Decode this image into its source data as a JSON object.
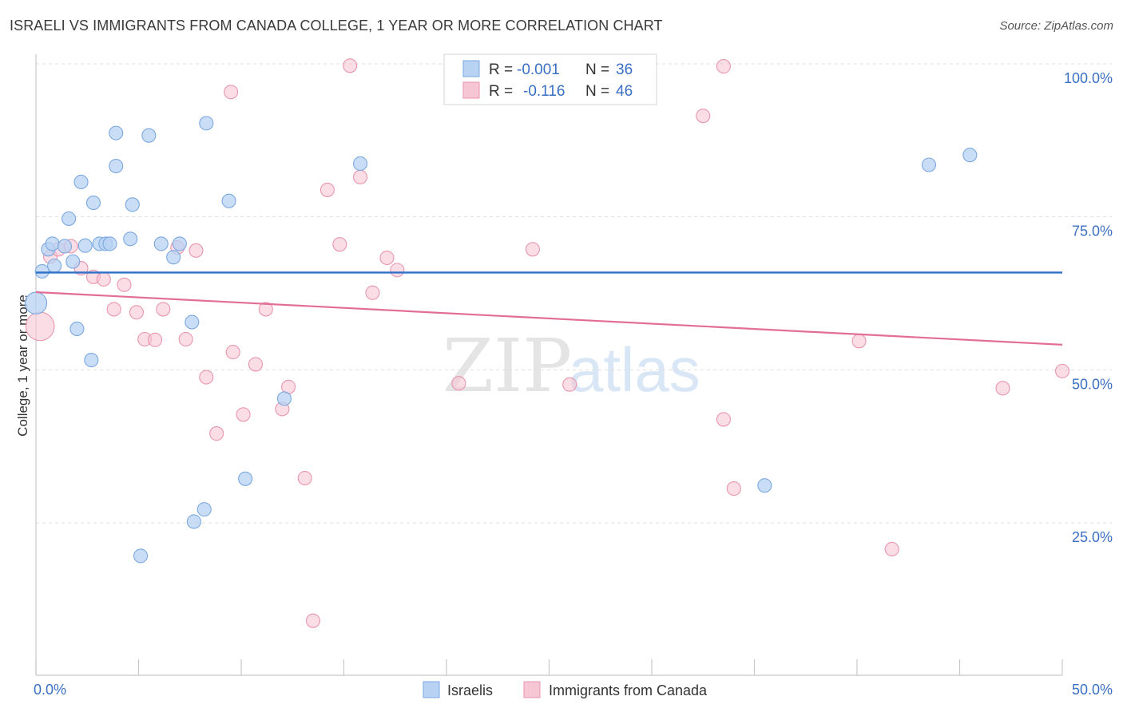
{
  "title": "ISRAELI VS IMMIGRANTS FROM CANADA COLLEGE, 1 YEAR OR MORE CORRELATION CHART",
  "source": "Source: ZipAtlas.com",
  "watermark": {
    "zip": "ZIP",
    "atlas": "atlas"
  },
  "colors": {
    "blue_fill": "#b8d2f3",
    "blue_stroke": "#7aa8e0",
    "blue_line": "#2e6fc8",
    "pink_fill": "#f7c6d4",
    "pink_stroke": "#e996b0",
    "pink_line": "#e26e97",
    "axis_text": "#3b6fc4"
  },
  "legend": {
    "rows": [
      {
        "r_label": "R =",
        "r_value": "-0.001",
        "n_label": "N =",
        "n_value": "36"
      },
      {
        "r_label": "R =",
        "r_value": "-0.116",
        "n_label": "N =",
        "n_value": "46"
      }
    ]
  },
  "bottom_legend": {
    "items": [
      "Israelis",
      "Immigrants from Canada"
    ]
  },
  "chart_data": {
    "type": "scatter",
    "title": "ISRAELI VS IMMIGRANTS FROM CANADA COLLEGE, 1 YEAR OR MORE CORRELATION CHART",
    "xlabel": "",
    "ylabel": "College, 1 year or more",
    "xlim": [
      0,
      50
    ],
    "ylim": [
      0,
      105
    ],
    "x_tick_labels": [
      "0.0%",
      "50.0%"
    ],
    "y_ticks": [
      25,
      50,
      75,
      100
    ],
    "y_tick_labels": [
      "25.0%",
      "50.0%",
      "75.0%",
      "100.0%"
    ],
    "grid": true,
    "legend_position": "top-center",
    "series": [
      {
        "name": "Israelis",
        "r": -0.001,
        "n": 36,
        "trend": {
          "x": [
            0,
            50
          ],
          "y": [
            65.9,
            65.9
          ]
        },
        "points": [
          {
            "x": 0.3,
            "y": 66.1,
            "s": 1
          },
          {
            "x": 0.0,
            "y": 60.9,
            "s": 1.6
          },
          {
            "x": 0.6,
            "y": 69.7,
            "s": 1
          },
          {
            "x": 0.9,
            "y": 67.0,
            "s": 1
          },
          {
            "x": 0.8,
            "y": 70.6,
            "s": 1
          },
          {
            "x": 1.4,
            "y": 70.2,
            "s": 1
          },
          {
            "x": 1.6,
            "y": 74.7,
            "s": 1
          },
          {
            "x": 1.8,
            "y": 67.7,
            "s": 1
          },
          {
            "x": 2.2,
            "y": 80.7,
            "s": 1
          },
          {
            "x": 2.0,
            "y": 56.7,
            "s": 1
          },
          {
            "x": 2.4,
            "y": 70.3,
            "s": 1
          },
          {
            "x": 2.7,
            "y": 51.6,
            "s": 1
          },
          {
            "x": 2.8,
            "y": 77.3,
            "s": 1
          },
          {
            "x": 3.1,
            "y": 70.6,
            "s": 1
          },
          {
            "x": 3.4,
            "y": 70.6,
            "s": 1
          },
          {
            "x": 3.6,
            "y": 70.6,
            "s": 1
          },
          {
            "x": 3.9,
            "y": 88.7,
            "s": 1
          },
          {
            "x": 3.9,
            "y": 83.3,
            "s": 1
          },
          {
            "x": 4.6,
            "y": 71.4,
            "s": 1
          },
          {
            "x": 4.7,
            "y": 77.0,
            "s": 1
          },
          {
            "x": 5.1,
            "y": 19.6,
            "s": 1
          },
          {
            "x": 5.5,
            "y": 88.3,
            "s": 1
          },
          {
            "x": 6.1,
            "y": 70.6,
            "s": 1
          },
          {
            "x": 6.7,
            "y": 68.4,
            "s": 1
          },
          {
            "x": 7.0,
            "y": 70.6,
            "s": 1
          },
          {
            "x": 7.6,
            "y": 57.8,
            "s": 1
          },
          {
            "x": 7.7,
            "y": 25.2,
            "s": 1
          },
          {
            "x": 8.2,
            "y": 27.2,
            "s": 1
          },
          {
            "x": 8.3,
            "y": 90.3,
            "s": 1
          },
          {
            "x": 9.4,
            "y": 77.6,
            "s": 1
          },
          {
            "x": 10.2,
            "y": 32.2,
            "s": 1
          },
          {
            "x": 12.1,
            "y": 45.3,
            "s": 1
          },
          {
            "x": 15.8,
            "y": 83.7,
            "s": 1
          },
          {
            "x": 35.5,
            "y": 31.1,
            "s": 1
          },
          {
            "x": 43.5,
            "y": 83.5,
            "s": 1
          },
          {
            "x": 45.5,
            "y": 85.1,
            "s": 1
          }
        ]
      },
      {
        "name": "Immigrants from Canada",
        "r": -0.116,
        "n": 46,
        "trend": {
          "x": [
            0,
            50
          ],
          "y": [
            62.7,
            54.1
          ]
        },
        "points": [
          {
            "x": 0.2,
            "y": 57.1,
            "s": 2.1
          },
          {
            "x": 0.7,
            "y": 68.5,
            "s": 1
          },
          {
            "x": 1.1,
            "y": 69.7,
            "s": 1
          },
          {
            "x": 1.7,
            "y": 70.2,
            "s": 1
          },
          {
            "x": 2.2,
            "y": 66.6,
            "s": 1
          },
          {
            "x": 2.8,
            "y": 65.2,
            "s": 1
          },
          {
            "x": 3.3,
            "y": 64.8,
            "s": 1
          },
          {
            "x": 3.8,
            "y": 59.9,
            "s": 1
          },
          {
            "x": 4.3,
            "y": 63.9,
            "s": 1
          },
          {
            "x": 4.9,
            "y": 59.4,
            "s": 1
          },
          {
            "x": 5.3,
            "y": 55.0,
            "s": 1
          },
          {
            "x": 5.8,
            "y": 54.9,
            "s": 1
          },
          {
            "x": 6.2,
            "y": 59.9,
            "s": 1
          },
          {
            "x": 6.9,
            "y": 70.0,
            "s": 1
          },
          {
            "x": 7.3,
            "y": 55.0,
            "s": 1
          },
          {
            "x": 7.8,
            "y": 69.5,
            "s": 1
          },
          {
            "x": 8.3,
            "y": 48.8,
            "s": 1
          },
          {
            "x": 8.8,
            "y": 39.6,
            "s": 1
          },
          {
            "x": 9.5,
            "y": 95.4,
            "s": 1
          },
          {
            "x": 9.6,
            "y": 52.9,
            "s": 1
          },
          {
            "x": 10.1,
            "y": 42.7,
            "s": 1
          },
          {
            "x": 10.7,
            "y": 50.9,
            "s": 1
          },
          {
            "x": 11.2,
            "y": 59.9,
            "s": 1
          },
          {
            "x": 12.0,
            "y": 43.6,
            "s": 1
          },
          {
            "x": 12.3,
            "y": 47.2,
            "s": 1
          },
          {
            "x": 13.1,
            "y": 32.3,
            "s": 1
          },
          {
            "x": 13.5,
            "y": 9.0,
            "s": 1
          },
          {
            "x": 14.2,
            "y": 79.4,
            "s": 1
          },
          {
            "x": 14.8,
            "y": 70.5,
            "s": 1
          },
          {
            "x": 15.3,
            "y": 99.7,
            "s": 1
          },
          {
            "x": 15.8,
            "y": 81.5,
            "s": 1
          },
          {
            "x": 16.4,
            "y": 62.6,
            "s": 1
          },
          {
            "x": 17.1,
            "y": 68.3,
            "s": 1
          },
          {
            "x": 17.6,
            "y": 66.3,
            "s": 1
          },
          {
            "x": 20.6,
            "y": 47.8,
            "s": 1
          },
          {
            "x": 24.2,
            "y": 69.7,
            "s": 1
          },
          {
            "x": 26.0,
            "y": 47.6,
            "s": 1
          },
          {
            "x": 28.4,
            "y": 99.6,
            "s": 1
          },
          {
            "x": 32.5,
            "y": 91.5,
            "s": 1
          },
          {
            "x": 33.5,
            "y": 99.6,
            "s": 1
          },
          {
            "x": 33.5,
            "y": 41.9,
            "s": 1
          },
          {
            "x": 34.0,
            "y": 30.6,
            "s": 1
          },
          {
            "x": 40.1,
            "y": 54.7,
            "s": 1
          },
          {
            "x": 41.7,
            "y": 20.7,
            "s": 1
          },
          {
            "x": 47.1,
            "y": 47.0,
            "s": 1
          },
          {
            "x": 50.0,
            "y": 49.8,
            "s": 1
          }
        ]
      }
    ]
  }
}
